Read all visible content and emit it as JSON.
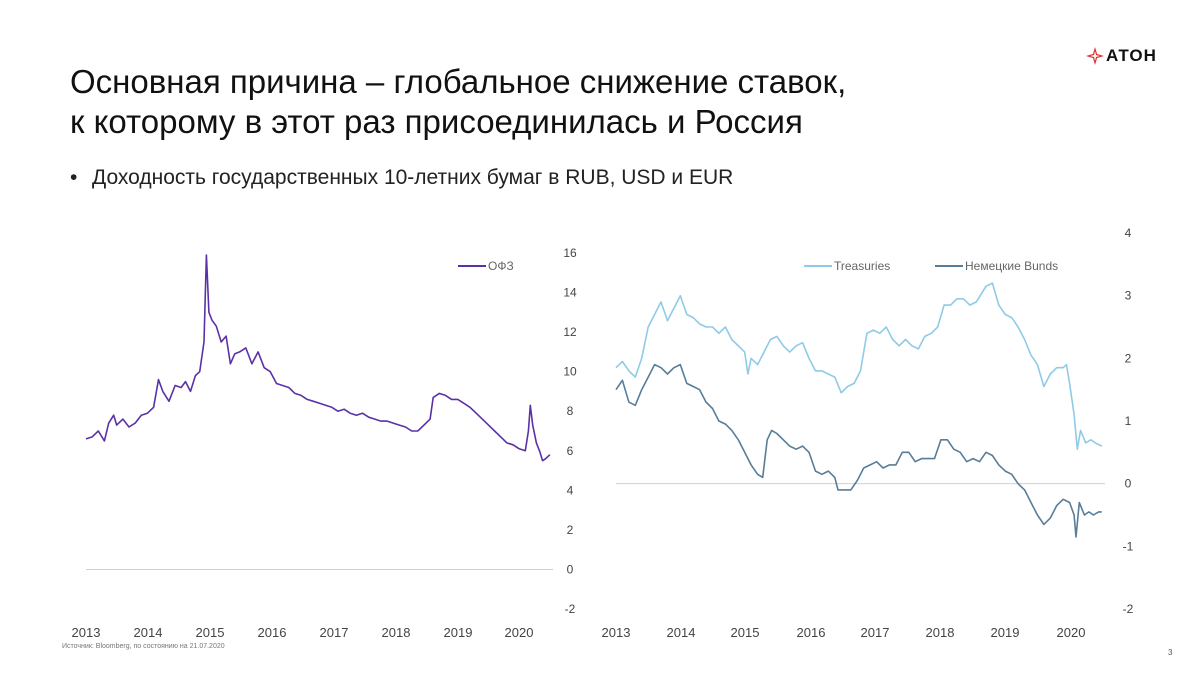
{
  "slide": {
    "title_line1": "Основная причина – глобальное снижение ставок,",
    "title_line2": "к которому в этот раз присоединилась и Россия",
    "bullet": "Доходность государственных 10-летних бумаг в RUB, USD и EUR",
    "logo": "АТОН",
    "source": "Источник: Bloomberg, по состоянию на 21.07.2020",
    "page_number": "3"
  },
  "colors": {
    "ofz": "#5b32a6",
    "treasuries": "#8fcbe6",
    "bunds": "#587d98",
    "axis": "#d0d0d0",
    "logo_red": "#e3262b"
  },
  "chart_data": [
    {
      "type": "line",
      "x_ticks": [
        "2013",
        "2014",
        "2015",
        "2016",
        "2017",
        "2018",
        "2019",
        "2020"
      ],
      "y_ticks": [
        "-2",
        "0",
        "2",
        "4",
        "6",
        "8",
        "10",
        "12",
        "14",
        "16"
      ],
      "ylim": [
        -2,
        16
      ],
      "xlim": [
        2013.0,
        2020.6
      ],
      "legend_position": "top-right",
      "series": [
        {
          "name": "ОФЗ",
          "color": "#5b32a6",
          "points": [
            [
              2013.0,
              6.6
            ],
            [
              2013.1,
              6.7
            ],
            [
              2013.2,
              7.0
            ],
            [
              2013.3,
              6.5
            ],
            [
              2013.37,
              7.4
            ],
            [
              2013.45,
              7.8
            ],
            [
              2013.5,
              7.3
            ],
            [
              2013.6,
              7.6
            ],
            [
              2013.7,
              7.2
            ],
            [
              2013.8,
              7.4
            ],
            [
              2013.9,
              7.8
            ],
            [
              2014.0,
              7.9
            ],
            [
              2014.1,
              8.2
            ],
            [
              2014.18,
              9.6
            ],
            [
              2014.25,
              9.0
            ],
            [
              2014.35,
              8.5
            ],
            [
              2014.45,
              9.3
            ],
            [
              2014.55,
              9.2
            ],
            [
              2014.62,
              9.5
            ],
            [
              2014.7,
              9.0
            ],
            [
              2014.78,
              9.8
            ],
            [
              2014.85,
              10.0
            ],
            [
              2014.92,
              11.5
            ],
            [
              2014.96,
              15.9
            ],
            [
              2015.0,
              13.0
            ],
            [
              2015.05,
              12.6
            ],
            [
              2015.12,
              12.3
            ],
            [
              2015.2,
              11.5
            ],
            [
              2015.28,
              11.8
            ],
            [
              2015.35,
              10.4
            ],
            [
              2015.42,
              10.9
            ],
            [
              2015.5,
              11.0
            ],
            [
              2015.6,
              11.2
            ],
            [
              2015.7,
              10.4
            ],
            [
              2015.8,
              11.0
            ],
            [
              2015.9,
              10.2
            ],
            [
              2016.0,
              10.0
            ],
            [
              2016.1,
              9.4
            ],
            [
              2016.2,
              9.3
            ],
            [
              2016.3,
              9.2
            ],
            [
              2016.4,
              8.9
            ],
            [
              2016.5,
              8.8
            ],
            [
              2016.6,
              8.6
            ],
            [
              2016.7,
              8.5
            ],
            [
              2016.8,
              8.4
            ],
            [
              2016.9,
              8.3
            ],
            [
              2017.0,
              8.2
            ],
            [
              2017.1,
              8.0
            ],
            [
              2017.2,
              8.1
            ],
            [
              2017.3,
              7.9
            ],
            [
              2017.4,
              7.8
            ],
            [
              2017.5,
              7.9
            ],
            [
              2017.6,
              7.7
            ],
            [
              2017.7,
              7.6
            ],
            [
              2017.8,
              7.5
            ],
            [
              2017.9,
              7.5
            ],
            [
              2018.0,
              7.4
            ],
            [
              2018.1,
              7.3
            ],
            [
              2018.2,
              7.2
            ],
            [
              2018.3,
              7.0
            ],
            [
              2018.4,
              7.0
            ],
            [
              2018.5,
              7.3
            ],
            [
              2018.6,
              7.6
            ],
            [
              2018.65,
              8.7
            ],
            [
              2018.75,
              8.9
            ],
            [
              2018.85,
              8.8
            ],
            [
              2018.95,
              8.6
            ],
            [
              2019.05,
              8.6
            ],
            [
              2019.15,
              8.4
            ],
            [
              2019.25,
              8.2
            ],
            [
              2019.35,
              7.9
            ],
            [
              2019.45,
              7.6
            ],
            [
              2019.55,
              7.3
            ],
            [
              2019.65,
              7.0
            ],
            [
              2019.75,
              6.7
            ],
            [
              2019.85,
              6.4
            ],
            [
              2019.95,
              6.3
            ],
            [
              2020.05,
              6.1
            ],
            [
              2020.15,
              6.0
            ],
            [
              2020.2,
              7.0
            ],
            [
              2020.23,
              8.3
            ],
            [
              2020.27,
              7.3
            ],
            [
              2020.33,
              6.4
            ],
            [
              2020.38,
              6.0
            ],
            [
              2020.43,
              5.5
            ],
            [
              2020.48,
              5.6
            ],
            [
              2020.55,
              5.8
            ]
          ]
        }
      ]
    },
    {
      "type": "line",
      "x_ticks": [
        "2013",
        "2014",
        "2015",
        "2016",
        "2017",
        "2018",
        "2019",
        "2020"
      ],
      "y_ticks": [
        "-2",
        "-1",
        "0",
        "1",
        "2",
        "3",
        "4"
      ],
      "ylim": [
        -2,
        4
      ],
      "xlim": [
        2013.0,
        2020.6
      ],
      "legend_position": "top-right",
      "series": [
        {
          "name": "Treasuries",
          "color": "#8fcbe6",
          "points": [
            [
              2013.0,
              1.85
            ],
            [
              2013.1,
              1.95
            ],
            [
              2013.2,
              1.8
            ],
            [
              2013.3,
              1.7
            ],
            [
              2013.4,
              2.0
            ],
            [
              2013.5,
              2.5
            ],
            [
              2013.6,
              2.7
            ],
            [
              2013.7,
              2.9
            ],
            [
              2013.8,
              2.6
            ],
            [
              2013.9,
              2.8
            ],
            [
              2014.0,
              3.0
            ],
            [
              2014.1,
              2.7
            ],
            [
              2014.2,
              2.65
            ],
            [
              2014.3,
              2.55
            ],
            [
              2014.4,
              2.5
            ],
            [
              2014.5,
              2.5
            ],
            [
              2014.6,
              2.4
            ],
            [
              2014.7,
              2.5
            ],
            [
              2014.8,
              2.3
            ],
            [
              2014.9,
              2.2
            ],
            [
              2015.0,
              2.1
            ],
            [
              2015.05,
              1.75
            ],
            [
              2015.1,
              2.0
            ],
            [
              2015.2,
              1.9
            ],
            [
              2015.3,
              2.1
            ],
            [
              2015.4,
              2.3
            ],
            [
              2015.5,
              2.35
            ],
            [
              2015.6,
              2.2
            ],
            [
              2015.7,
              2.1
            ],
            [
              2015.8,
              2.2
            ],
            [
              2015.9,
              2.25
            ],
            [
              2016.0,
              2.0
            ],
            [
              2016.1,
              1.8
            ],
            [
              2016.2,
              1.8
            ],
            [
              2016.3,
              1.75
            ],
            [
              2016.4,
              1.7
            ],
            [
              2016.5,
              1.45
            ],
            [
              2016.6,
              1.55
            ],
            [
              2016.7,
              1.6
            ],
            [
              2016.8,
              1.8
            ],
            [
              2016.9,
              2.4
            ],
            [
              2017.0,
              2.45
            ],
            [
              2017.1,
              2.4
            ],
            [
              2017.2,
              2.5
            ],
            [
              2017.3,
              2.3
            ],
            [
              2017.4,
              2.2
            ],
            [
              2017.5,
              2.3
            ],
            [
              2017.6,
              2.2
            ],
            [
              2017.7,
              2.15
            ],
            [
              2017.8,
              2.35
            ],
            [
              2017.9,
              2.4
            ],
            [
              2018.0,
              2.5
            ],
            [
              2018.1,
              2.85
            ],
            [
              2018.2,
              2.85
            ],
            [
              2018.3,
              2.95
            ],
            [
              2018.4,
              2.95
            ],
            [
              2018.5,
              2.85
            ],
            [
              2018.6,
              2.9
            ],
            [
              2018.75,
              3.15
            ],
            [
              2018.85,
              3.2
            ],
            [
              2018.95,
              2.85
            ],
            [
              2019.05,
              2.7
            ],
            [
              2019.15,
              2.65
            ],
            [
              2019.25,
              2.5
            ],
            [
              2019.35,
              2.3
            ],
            [
              2019.45,
              2.05
            ],
            [
              2019.55,
              1.9
            ],
            [
              2019.65,
              1.55
            ],
            [
              2019.75,
              1.75
            ],
            [
              2019.85,
              1.85
            ],
            [
              2019.95,
              1.85
            ],
            [
              2020.0,
              1.9
            ],
            [
              2020.05,
              1.6
            ],
            [
              2020.12,
              1.1
            ],
            [
              2020.17,
              0.55
            ],
            [
              2020.22,
              0.85
            ],
            [
              2020.3,
              0.65
            ],
            [
              2020.38,
              0.7
            ],
            [
              2020.45,
              0.65
            ],
            [
              2020.55,
              0.6
            ]
          ]
        },
        {
          "name": "Немецкие Bunds",
          "color": "#587d98",
          "points": [
            [
              2013.0,
              1.5
            ],
            [
              2013.1,
              1.65
            ],
            [
              2013.2,
              1.3
            ],
            [
              2013.3,
              1.25
            ],
            [
              2013.4,
              1.5
            ],
            [
              2013.5,
              1.7
            ],
            [
              2013.6,
              1.9
            ],
            [
              2013.7,
              1.85
            ],
            [
              2013.8,
              1.75
            ],
            [
              2013.9,
              1.85
            ],
            [
              2014.0,
              1.9
            ],
            [
              2014.1,
              1.6
            ],
            [
              2014.2,
              1.55
            ],
            [
              2014.3,
              1.5
            ],
            [
              2014.4,
              1.3
            ],
            [
              2014.5,
              1.2
            ],
            [
              2014.6,
              1.0
            ],
            [
              2014.7,
              0.95
            ],
            [
              2014.8,
              0.85
            ],
            [
              2014.9,
              0.7
            ],
            [
              2015.0,
              0.5
            ],
            [
              2015.1,
              0.3
            ],
            [
              2015.2,
              0.15
            ],
            [
              2015.28,
              0.1
            ],
            [
              2015.35,
              0.7
            ],
            [
              2015.42,
              0.85
            ],
            [
              2015.5,
              0.8
            ],
            [
              2015.6,
              0.7
            ],
            [
              2015.7,
              0.6
            ],
            [
              2015.8,
              0.55
            ],
            [
              2015.9,
              0.6
            ],
            [
              2016.0,
              0.5
            ],
            [
              2016.1,
              0.2
            ],
            [
              2016.2,
              0.15
            ],
            [
              2016.3,
              0.2
            ],
            [
              2016.4,
              0.1
            ],
            [
              2016.45,
              -0.1
            ],
            [
              2016.55,
              -0.1
            ],
            [
              2016.65,
              -0.1
            ],
            [
              2016.75,
              0.05
            ],
            [
              2016.85,
              0.25
            ],
            [
              2016.95,
              0.3
            ],
            [
              2017.05,
              0.35
            ],
            [
              2017.15,
              0.25
            ],
            [
              2017.25,
              0.3
            ],
            [
              2017.35,
              0.3
            ],
            [
              2017.45,
              0.5
            ],
            [
              2017.55,
              0.5
            ],
            [
              2017.65,
              0.35
            ],
            [
              2017.75,
              0.4
            ],
            [
              2017.85,
              0.4
            ],
            [
              2017.95,
              0.4
            ],
            [
              2018.05,
              0.7
            ],
            [
              2018.15,
              0.7
            ],
            [
              2018.25,
              0.55
            ],
            [
              2018.35,
              0.5
            ],
            [
              2018.45,
              0.35
            ],
            [
              2018.55,
              0.4
            ],
            [
              2018.65,
              0.35
            ],
            [
              2018.75,
              0.5
            ],
            [
              2018.85,
              0.45
            ],
            [
              2018.95,
              0.3
            ],
            [
              2019.05,
              0.2
            ],
            [
              2019.15,
              0.15
            ],
            [
              2019.25,
              0.0
            ],
            [
              2019.35,
              -0.1
            ],
            [
              2019.45,
              -0.3
            ],
            [
              2019.55,
              -0.5
            ],
            [
              2019.65,
              -0.65
            ],
            [
              2019.75,
              -0.55
            ],
            [
              2019.85,
              -0.35
            ],
            [
              2019.95,
              -0.25
            ],
            [
              2020.05,
              -0.3
            ],
            [
              2020.12,
              -0.5
            ],
            [
              2020.15,
              -0.85
            ],
            [
              2020.2,
              -0.3
            ],
            [
              2020.28,
              -0.5
            ],
            [
              2020.35,
              -0.45
            ],
            [
              2020.42,
              -0.5
            ],
            [
              2020.5,
              -0.45
            ],
            [
              2020.55,
              -0.45
            ]
          ]
        }
      ]
    }
  ]
}
